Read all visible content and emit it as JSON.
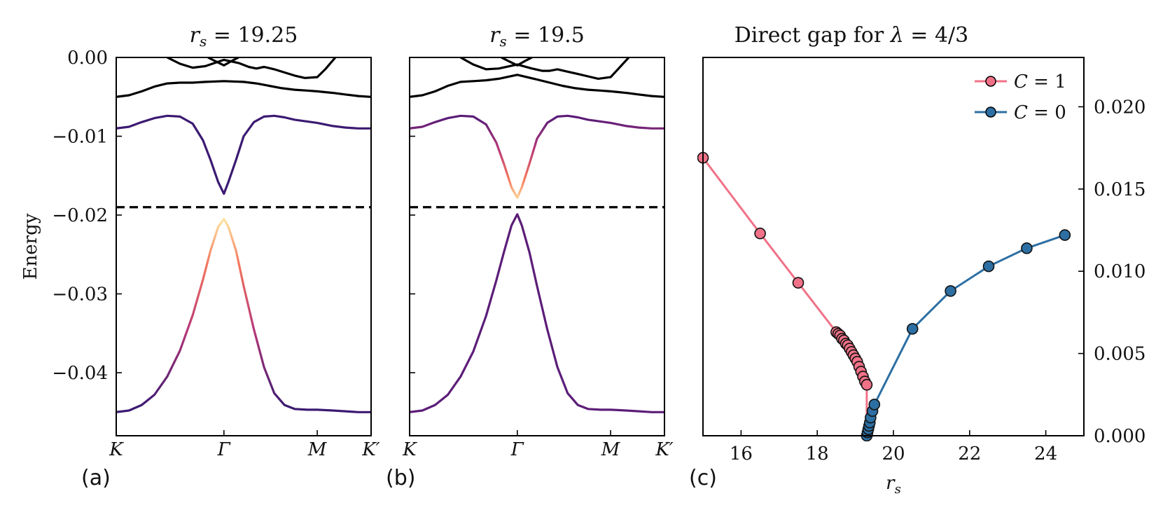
{
  "chart_data": [
    {
      "type": "line",
      "panel": "(a)",
      "title_var": "r",
      "title_sub": "s",
      "title_rest": " = 19.25",
      "ylabel": "Energy",
      "ylim": [
        -0.048,
        0.0
      ],
      "yticks": [
        0.0,
        -0.01,
        -0.02,
        -0.03,
        -0.04
      ],
      "ytick_labels": [
        "0.00",
        "−0.01",
        "−0.02",
        "−0.03",
        "−0.04"
      ],
      "xtick_labels": [
        "K",
        "Γ",
        "M",
        "K′"
      ],
      "xticks": [
        0.0,
        0.4226,
        0.7887,
        1.0
      ],
      "fermi_level": -0.019,
      "series": [
        {
          "name": "band-black-1",
          "color": "#000000",
          "x": [
            0.0,
            0.05,
            0.1,
            0.15,
            0.2,
            0.25,
            0.3,
            0.35,
            0.4226,
            0.5,
            0.55,
            0.6,
            0.65,
            0.7,
            0.75,
            0.7887,
            0.85,
            0.9,
            0.95,
            1.0
          ],
          "y": [
            -0.005,
            -0.0048,
            -0.0043,
            -0.0037,
            -0.0033,
            -0.0032,
            -0.0032,
            -0.0031,
            -0.003,
            -0.0031,
            -0.0033,
            -0.0036,
            -0.0039,
            -0.0041,
            -0.0042,
            -0.0043,
            -0.0045,
            -0.0047,
            -0.0049,
            -0.005
          ]
        },
        {
          "name": "band-black-2",
          "color": "#000000",
          "x": [
            0.2,
            0.25,
            0.3,
            0.35,
            0.4226,
            0.48,
            0.52,
            0.55,
            0.58,
            0.62,
            0.66,
            0.7,
            0.74,
            0.7887,
            0.82,
            0.86
          ],
          "y": [
            0.0,
            -0.0008,
            -0.0013,
            -0.0011,
            -0.0003,
            -0.0007,
            -0.0012,
            -0.0014,
            -0.0012,
            -0.0015,
            -0.0019,
            -0.0023,
            -0.0026,
            -0.0025,
            -0.0015,
            0.0
          ]
        },
        {
          "name": "band-black-3",
          "color": "#000000",
          "x": [
            0.36,
            0.39,
            0.4226,
            0.45,
            0.48
          ],
          "y": [
            0.0,
            -0.0005,
            -0.001,
            -0.0005,
            0.0
          ]
        },
        {
          "name": "conduction-band",
          "color": "#3c1a72",
          "x": [
            0.0,
            0.05,
            0.1,
            0.15,
            0.2,
            0.25,
            0.3,
            0.34,
            0.37,
            0.4,
            0.4226,
            0.44,
            0.47,
            0.5,
            0.54,
            0.58,
            0.62,
            0.66,
            0.7,
            0.7887,
            0.85,
            0.9,
            0.95,
            1.0
          ],
          "y": [
            -0.009,
            -0.0088,
            -0.0082,
            -0.0077,
            -0.0074,
            -0.0075,
            -0.0084,
            -0.0105,
            -0.013,
            -0.0158,
            -0.0173,
            -0.0158,
            -0.013,
            -0.01,
            -0.0082,
            -0.0075,
            -0.0074,
            -0.0076,
            -0.0079,
            -0.0083,
            -0.0087,
            -0.0089,
            -0.009,
            -0.009
          ]
        },
        {
          "name": "valence-band",
          "color": "#d9476d",
          "x": [
            0.0,
            0.05,
            0.1,
            0.15,
            0.2,
            0.25,
            0.3,
            0.34,
            0.37,
            0.4,
            0.4226,
            0.44,
            0.47,
            0.5,
            0.54,
            0.58,
            0.62,
            0.66,
            0.7,
            0.75,
            0.7887,
            0.85,
            0.9,
            0.95,
            1.0
          ],
          "y": [
            -0.045,
            -0.0448,
            -0.0441,
            -0.0428,
            -0.0405,
            -0.0372,
            -0.0327,
            -0.0282,
            -0.0245,
            -0.0215,
            -0.0205,
            -0.0215,
            -0.0245,
            -0.029,
            -0.0345,
            -0.0393,
            -0.0426,
            -0.0441,
            -0.0446,
            -0.0447,
            -0.0447,
            -0.0448,
            -0.0449,
            -0.045,
            -0.045
          ]
        }
      ]
    },
    {
      "type": "line",
      "panel": "(b)",
      "title_var": "r",
      "title_sub": "s",
      "title_rest": " = 19.5",
      "ylim": [
        -0.048,
        0.0
      ],
      "xtick_labels": [
        "K",
        "Γ",
        "M",
        "K′"
      ],
      "xticks": [
        0.0,
        0.4226,
        0.7887,
        1.0
      ],
      "fermi_level": -0.019,
      "series": [
        {
          "name": "band-black-1",
          "color": "#000000",
          "x": [
            0.0,
            0.05,
            0.1,
            0.15,
            0.2,
            0.25,
            0.3,
            0.35,
            0.4226,
            0.5,
            0.55,
            0.6,
            0.65,
            0.7,
            0.75,
            0.7887,
            0.85,
            0.9,
            0.95,
            1.0
          ],
          "y": [
            -0.005,
            -0.0048,
            -0.0043,
            -0.0036,
            -0.0031,
            -0.003,
            -0.0029,
            -0.0027,
            -0.0022,
            -0.0028,
            -0.0032,
            -0.0036,
            -0.0039,
            -0.0041,
            -0.0042,
            -0.0043,
            -0.0045,
            -0.0047,
            -0.0049,
            -0.005
          ]
        },
        {
          "name": "band-black-2",
          "color": "#000000",
          "x": [
            0.2,
            0.25,
            0.3,
            0.35,
            0.4226,
            0.48,
            0.52,
            0.55,
            0.58,
            0.62,
            0.66,
            0.7,
            0.74,
            0.7887,
            0.82,
            0.86
          ],
          "y": [
            0.0,
            -0.0009,
            -0.0015,
            -0.0014,
            -0.0009,
            -0.0014,
            -0.0017,
            -0.0017,
            -0.0015,
            -0.0018,
            -0.0021,
            -0.0024,
            -0.0027,
            -0.0025,
            -0.0014,
            0.0
          ]
        },
        {
          "name": "band-black-3",
          "color": "#000000",
          "x": [
            0.36,
            0.39,
            0.4226,
            0.45,
            0.48
          ],
          "y": [
            0.0,
            -0.0005,
            -0.001,
            -0.0005,
            0.0
          ]
        },
        {
          "name": "conduction-band",
          "color": "#c13c7a",
          "x": [
            0.0,
            0.05,
            0.1,
            0.15,
            0.2,
            0.25,
            0.3,
            0.34,
            0.37,
            0.4,
            0.4226,
            0.44,
            0.47,
            0.5,
            0.54,
            0.58,
            0.62,
            0.66,
            0.7,
            0.7887,
            0.85,
            0.9,
            0.95,
            1.0
          ],
          "y": [
            -0.009,
            -0.0088,
            -0.0082,
            -0.0077,
            -0.0074,
            -0.0075,
            -0.0085,
            -0.0108,
            -0.0135,
            -0.0165,
            -0.0178,
            -0.0165,
            -0.0135,
            -0.0103,
            -0.0083,
            -0.0075,
            -0.0074,
            -0.0076,
            -0.0079,
            -0.0083,
            -0.0087,
            -0.0089,
            -0.009,
            -0.009
          ]
        },
        {
          "name": "valence-band",
          "color": "#5c1d78",
          "x": [
            0.0,
            0.05,
            0.1,
            0.15,
            0.2,
            0.25,
            0.3,
            0.34,
            0.37,
            0.4,
            0.4226,
            0.44,
            0.47,
            0.5,
            0.54,
            0.58,
            0.62,
            0.66,
            0.7,
            0.75,
            0.7887,
            0.85,
            0.9,
            0.95,
            1.0
          ],
          "y": [
            -0.045,
            -0.0448,
            -0.0441,
            -0.0428,
            -0.0405,
            -0.0373,
            -0.0328,
            -0.0283,
            -0.0247,
            -0.0213,
            -0.0199,
            -0.0213,
            -0.0247,
            -0.029,
            -0.0345,
            -0.0393,
            -0.0426,
            -0.0441,
            -0.0446,
            -0.0447,
            -0.0447,
            -0.0448,
            -0.0449,
            -0.045,
            -0.045
          ]
        }
      ]
    },
    {
      "type": "line",
      "panel": "(c)",
      "title_text": "Direct gap for ",
      "title_var": "λ",
      "title_rest": " = 4/3",
      "xlabel_var": "r",
      "xlabel_sub": "s",
      "xlim": [
        15,
        25
      ],
      "ylim": [
        0.0,
        0.023
      ],
      "xticks": [
        16,
        18,
        20,
        22,
        24
      ],
      "xtick_labels": [
        "16",
        "18",
        "20",
        "22",
        "24"
      ],
      "yticks": [
        0.0,
        0.005,
        0.01,
        0.015,
        0.02
      ],
      "ytick_labels": [
        "0.000",
        "0.005",
        "0.010",
        "0.015",
        "0.020"
      ],
      "legend_position": "top-right",
      "series": [
        {
          "name": "C = 1",
          "legend_var": "C",
          "legend_rest": " = 1",
          "color": "#f07288",
          "x": [
            15.0,
            16.5,
            17.5,
            18.5,
            18.55,
            18.6,
            18.65,
            18.7,
            18.75,
            18.8,
            18.85,
            18.9,
            18.95,
            19.0,
            19.05,
            19.1,
            19.15,
            19.2,
            19.25,
            19.3
          ],
          "y": [
            0.0169,
            0.0123,
            0.0093,
            0.0063,
            0.0062,
            0.0061,
            0.0059,
            0.0058,
            0.0056,
            0.0055,
            0.0053,
            0.0051,
            0.0049,
            0.0047,
            0.0045,
            0.0042,
            0.0039,
            0.0036,
            0.0033,
            0.0031
          ]
        },
        {
          "name": "C = 0",
          "legend_var": "C",
          "legend_rest": " = 0",
          "color": "#2d6fa3",
          "x": [
            19.3,
            19.32,
            19.34,
            19.36,
            19.38,
            19.4,
            19.45,
            19.5,
            20.5,
            21.5,
            22.5,
            23.5,
            24.5
          ],
          "y": [
            0.0,
            0.0002,
            0.0004,
            0.0006,
            0.0008,
            0.0011,
            0.0015,
            0.0019,
            0.0065,
            0.0088,
            0.0103,
            0.0114,
            0.0122
          ]
        }
      ],
      "vertical_connector": {
        "x": 19.3,
        "y_from": 0.0031,
        "y_to": 0.0
      }
    }
  ]
}
